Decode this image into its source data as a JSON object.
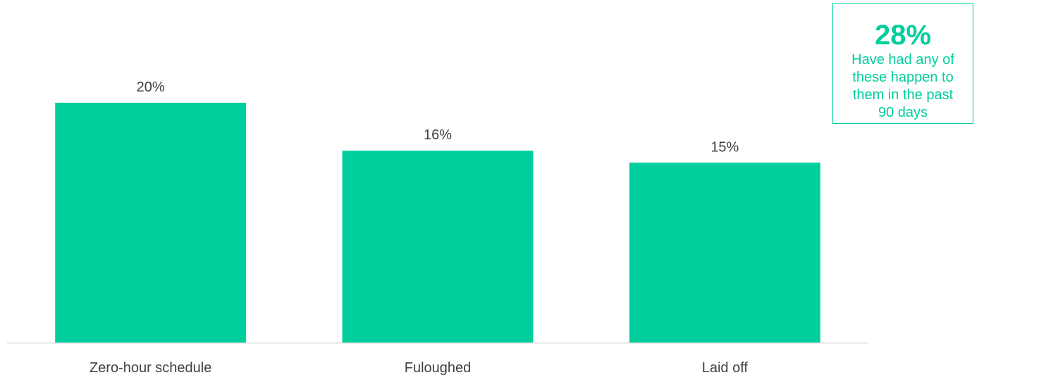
{
  "chart_data": {
    "type": "bar",
    "categories": [
      "Zero-hour schedule",
      "Fuloughed",
      "Laid off"
    ],
    "values": [
      20,
      16,
      15
    ],
    "value_labels": [
      "20%",
      "16%",
      "15%"
    ],
    "unit": "%",
    "title": "",
    "xlabel": "",
    "ylabel": "",
    "ylim": [
      0,
      20
    ],
    "grid": false,
    "legend": "none",
    "bar_color": "#00CE9C",
    "axis_color": "#D9D9D9"
  },
  "callout": {
    "value": "28%",
    "text": "Have had any of these happen to them in the past 90 days",
    "color": "#00CE9C"
  }
}
